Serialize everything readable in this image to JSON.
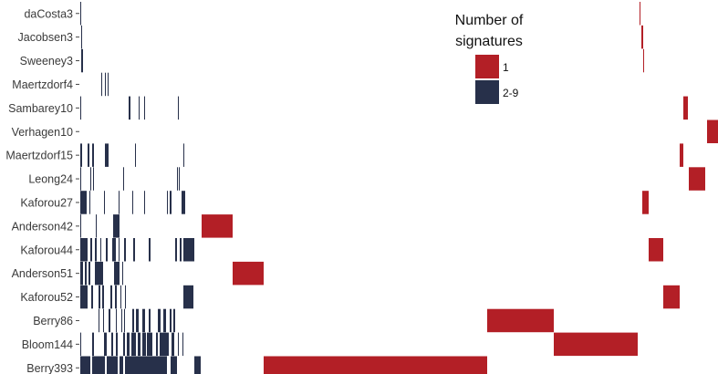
{
  "chart_data": {
    "type": "heatmap",
    "title": "",
    "xlabel": "",
    "ylabel": "",
    "x_range": [
      0,
      700
    ],
    "colors": {
      "1": "#b31f26",
      "2-9": "#27304a"
    },
    "legend": {
      "title_lines": [
        "Number of",
        "signatures"
      ],
      "items": [
        {
          "label": "1",
          "key": "1"
        },
        {
          "label": "2-9",
          "key": "2-9"
        }
      ],
      "position": "top-right"
    },
    "rows": [
      {
        "name": "daCosta3",
        "segments": [
          [
            1,
            2,
            "2-9"
          ],
          [
            614,
            615,
            "1"
          ]
        ]
      },
      {
        "name": "Jacobsen3",
        "segments": [
          [
            2,
            3,
            "2-9"
          ],
          [
            616,
            618,
            "1"
          ]
        ]
      },
      {
        "name": "Sweeney3",
        "segments": [
          [
            2,
            4,
            "2-9"
          ],
          [
            618,
            619,
            "1"
          ]
        ]
      },
      {
        "name": "Maertzdorf4",
        "segments": [
          [
            24,
            25,
            "2-9"
          ],
          [
            28,
            29,
            "2-9"
          ],
          [
            31,
            32,
            "2-9"
          ]
        ]
      },
      {
        "name": "Sambarey10",
        "segments": [
          [
            1,
            2,
            "2-9"
          ],
          [
            54,
            56,
            "2-9"
          ],
          [
            65,
            66,
            "2-9"
          ],
          [
            71,
            72,
            "2-9"
          ],
          [
            108,
            109,
            "2-9"
          ],
          [
            662,
            667,
            "1"
          ]
        ]
      },
      {
        "name": "Verhagen10",
        "segments": [
          [
            688,
            700,
            "1"
          ]
        ]
      },
      {
        "name": "Maertzdorf15",
        "segments": [
          [
            1,
            3,
            "2-9"
          ],
          [
            9,
            11,
            "2-9"
          ],
          [
            14,
            16,
            "2-9"
          ],
          [
            28,
            32,
            "2-9"
          ],
          [
            61,
            62,
            "2-9"
          ],
          [
            114,
            115,
            "2-9"
          ],
          [
            658,
            662,
            "1"
          ]
        ]
      },
      {
        "name": "Leong24",
        "segments": [
          [
            1,
            2,
            "2-9"
          ],
          [
            12,
            13,
            "2-9"
          ],
          [
            15,
            16,
            "2-9"
          ],
          [
            48,
            49,
            "2-9"
          ],
          [
            107,
            108,
            "2-9"
          ],
          [
            109,
            110,
            "2-9"
          ],
          [
            668,
            686,
            "1"
          ]
        ]
      },
      {
        "name": "Kaforou27",
        "segments": [
          [
            1,
            8,
            "2-9"
          ],
          [
            11,
            12,
            "2-9"
          ],
          [
            27,
            28,
            "2-9"
          ],
          [
            43,
            44,
            "2-9"
          ],
          [
            58,
            59,
            "2-9"
          ],
          [
            71,
            72,
            "2-9"
          ],
          [
            96,
            97,
            "2-9"
          ],
          [
            99,
            101,
            "2-9"
          ],
          [
            112,
            116,
            "2-9"
          ],
          [
            617,
            624,
            "1"
          ]
        ]
      },
      {
        "name": "Anderson42",
        "segments": [
          [
            1,
            2,
            "2-9"
          ],
          [
            18,
            19,
            "2-9"
          ],
          [
            37,
            44,
            "2-9"
          ],
          [
            134,
            168,
            "1"
          ]
        ]
      },
      {
        "name": "Kaforou44",
        "segments": [
          [
            1,
            9,
            "2-9"
          ],
          [
            12,
            14,
            "2-9"
          ],
          [
            17,
            19,
            "2-9"
          ],
          [
            23,
            24,
            "2-9"
          ],
          [
            29,
            31,
            "2-9"
          ],
          [
            36,
            40,
            "2-9"
          ],
          [
            43,
            44,
            "2-9"
          ],
          [
            49,
            51,
            "2-9"
          ],
          [
            59,
            61,
            "2-9"
          ],
          [
            76,
            78,
            "2-9"
          ],
          [
            105,
            107,
            "2-9"
          ],
          [
            110,
            112,
            "2-9"
          ],
          [
            114,
            126,
            "2-9"
          ],
          [
            624,
            640,
            "1"
          ]
        ]
      },
      {
        "name": "Anderson51",
        "segments": [
          [
            1,
            4,
            "2-9"
          ],
          [
            6,
            8,
            "2-9"
          ],
          [
            10,
            12,
            "2-9"
          ],
          [
            17,
            26,
            "2-9"
          ],
          [
            38,
            44,
            "2-9"
          ],
          [
            47,
            48,
            "2-9"
          ],
          [
            168,
            202,
            "1"
          ]
        ]
      },
      {
        "name": "Kaforou52",
        "segments": [
          [
            1,
            9,
            "2-9"
          ],
          [
            13,
            15,
            "2-9"
          ],
          [
            21,
            23,
            "2-9"
          ],
          [
            25,
            27,
            "2-9"
          ],
          [
            34,
            36,
            "2-9"
          ],
          [
            39,
            41,
            "2-9"
          ],
          [
            45,
            46,
            "2-9"
          ],
          [
            50,
            51,
            "2-9"
          ],
          [
            114,
            125,
            "2-9"
          ],
          [
            640,
            658,
            "1"
          ]
        ]
      },
      {
        "name": "Berry86",
        "segments": [
          [
            21,
            22,
            "2-9"
          ],
          [
            26,
            27,
            "2-9"
          ],
          [
            32,
            34,
            "2-9"
          ],
          [
            40,
            41,
            "2-9"
          ],
          [
            46,
            47,
            "2-9"
          ],
          [
            49,
            50,
            "2-9"
          ],
          [
            58,
            60,
            "2-9"
          ],
          [
            62,
            65,
            "2-9"
          ],
          [
            69,
            72,
            "2-9"
          ],
          [
            76,
            78,
            "2-9"
          ],
          [
            86,
            89,
            "2-9"
          ],
          [
            92,
            95,
            "2-9"
          ],
          [
            99,
            101,
            "2-9"
          ],
          [
            103,
            105,
            "2-9"
          ],
          [
            447,
            520,
            "1"
          ]
        ]
      },
      {
        "name": "Bloom144",
        "segments": [
          [
            1,
            2,
            "2-9"
          ],
          [
            14,
            16,
            "2-9"
          ],
          [
            27,
            30,
            "2-9"
          ],
          [
            35,
            37,
            "2-9"
          ],
          [
            40,
            42,
            "2-9"
          ],
          [
            48,
            50,
            "2-9"
          ],
          [
            52,
            55,
            "2-9"
          ],
          [
            57,
            62,
            "2-9"
          ],
          [
            64,
            67,
            "2-9"
          ],
          [
            69,
            73,
            "2-9"
          ],
          [
            74,
            80,
            "2-9"
          ],
          [
            84,
            86,
            "2-9"
          ],
          [
            88,
            98,
            "2-9"
          ],
          [
            101,
            104,
            "2-9"
          ],
          [
            108,
            109,
            "2-9"
          ],
          [
            113,
            114,
            "2-9"
          ],
          [
            520,
            612,
            "1"
          ]
        ]
      },
      {
        "name": "Berry393",
        "segments": [
          [
            1,
            12,
            "2-9"
          ],
          [
            14,
            28,
            "2-9"
          ],
          [
            30,
            42,
            "2-9"
          ],
          [
            44,
            48,
            "2-9"
          ],
          [
            50,
            96,
            "2-9"
          ],
          [
            100,
            107,
            "2-9"
          ],
          [
            126,
            133,
            "2-9"
          ],
          [
            202,
            447,
            "1"
          ]
        ]
      }
    ]
  }
}
